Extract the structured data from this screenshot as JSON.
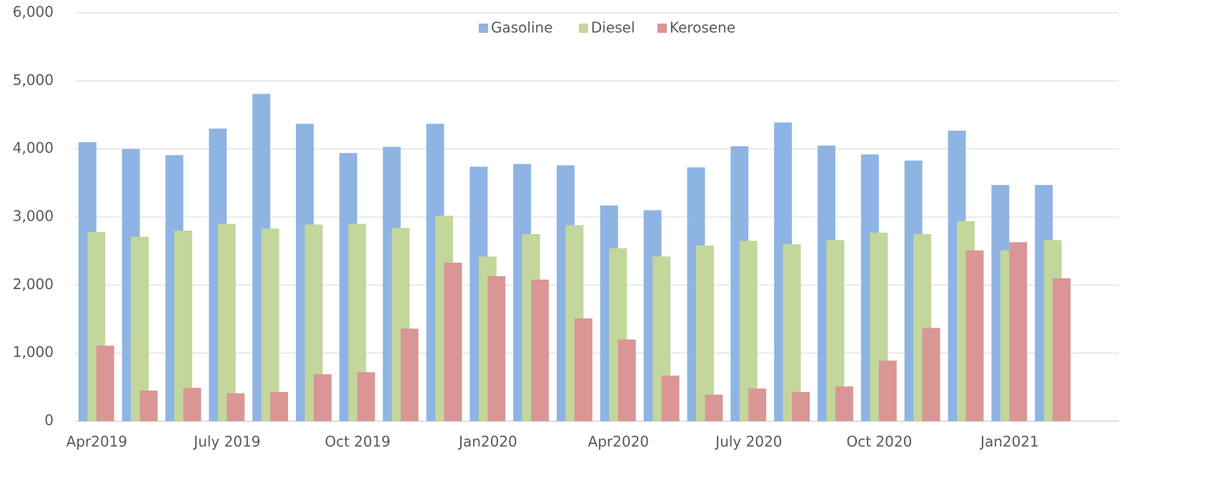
{
  "chart_data": {
    "type": "bar",
    "categories": [
      "Apr2019",
      null,
      null,
      "July 2019",
      null,
      null,
      "Oct 2019",
      null,
      null,
      "Jan2020",
      null,
      null,
      "Apr2020",
      null,
      null,
      "July 2020",
      null,
      null,
      "Oct 2020",
      null,
      null,
      "Jan2021",
      null,
      null
    ],
    "series": [
      {
        "name": "Gasoline",
        "color": "#8eb4e3",
        "values": [
          4100,
          4000,
          3910,
          4300,
          4810,
          4370,
          3940,
          4030,
          4370,
          3740,
          3780,
          3760,
          3170,
          3100,
          3730,
          4040,
          4390,
          4050,
          3920,
          3830,
          4270,
          3470,
          3470,
          null
        ]
      },
      {
        "name": "Diesel",
        "color": "#c3d69b",
        "values": [
          2780,
          2710,
          2800,
          2900,
          2830,
          2890,
          2900,
          2840,
          3020,
          2420,
          2750,
          2880,
          2540,
          2420,
          2580,
          2650,
          2600,
          2660,
          2770,
          2750,
          2940,
          2510,
          2660,
          null
        ]
      },
      {
        "name": "Kerosene",
        "color": "#d99694",
        "values": [
          1110,
          450,
          490,
          410,
          430,
          690,
          720,
          1360,
          2330,
          2130,
          2080,
          1510,
          1200,
          670,
          390,
          480,
          430,
          510,
          890,
          1370,
          2510,
          2630,
          2100,
          null
        ]
      }
    ],
    "ylim": [
      0,
      6000
    ],
    "yticks": [
      {
        "value": 0,
        "label": "0"
      },
      {
        "value": 1000,
        "label": "1,000"
      },
      {
        "value": 2000,
        "label": "2,000"
      },
      {
        "value": 3000,
        "label": "3,000"
      },
      {
        "value": 4000,
        "label": "4,000"
      },
      {
        "value": 5000,
        "label": "5,000"
      },
      {
        "value": 6000,
        "label": "6,000"
      }
    ],
    "grid": true,
    "legend": "top"
  }
}
